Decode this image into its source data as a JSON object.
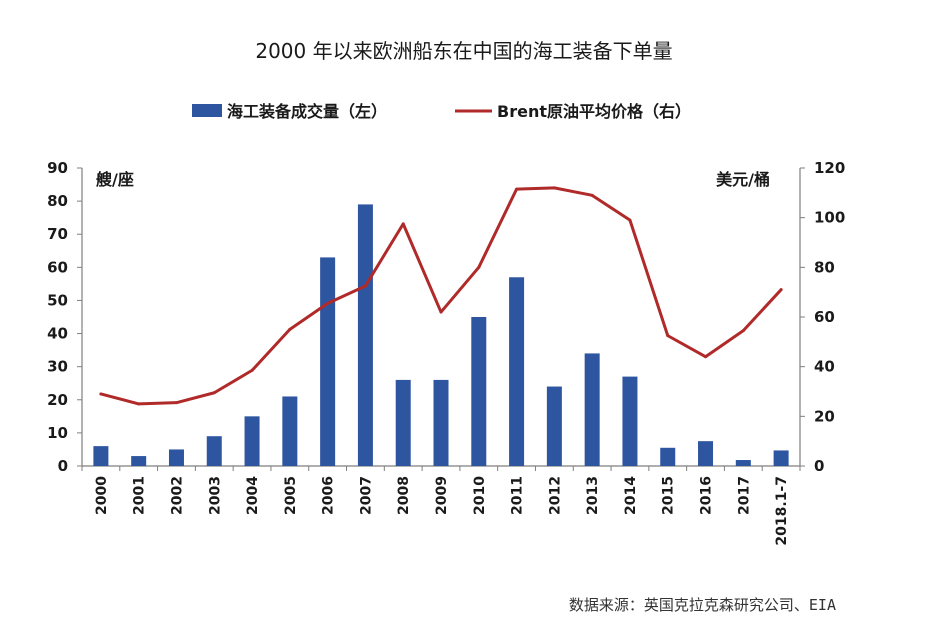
{
  "colors": {
    "bar": "#2e55a0",
    "line": "#b02a2a",
    "axis": "#7f7f7f",
    "text": "#1a1a1a"
  },
  "chart_data": {
    "type": "bar",
    "title": "2000 年以来欧洲船东在中国的海工装备下单量",
    "categories": [
      "2000",
      "2001",
      "2002",
      "2003",
      "2004",
      "2005",
      "2006",
      "2007",
      "2008",
      "2009",
      "2010",
      "2011",
      "2012",
      "2013",
      "2014",
      "2015",
      "2016",
      "2017",
      "2018.1-7"
    ],
    "series": [
      {
        "name": "海工装备成交量（左）",
        "type": "bar",
        "axis": "left",
        "values": [
          6,
          3,
          5,
          9,
          15,
          21,
          63,
          79,
          26,
          26,
          45,
          57,
          24,
          34,
          27,
          5.5,
          7.5,
          1.8,
          4.7
        ]
      },
      {
        "name": "Brent原油平均价格（右）",
        "type": "line",
        "axis": "right",
        "values": [
          29,
          25,
          25.5,
          29.5,
          38.5,
          55,
          65.5,
          72.5,
          97.5,
          62,
          80,
          111.5,
          112,
          109,
          99,
          52.5,
          44,
          54.5,
          71
        ]
      }
    ],
    "left_axis": {
      "unit": "艘/座",
      "ylim": [
        0,
        90
      ],
      "ticks": [
        0,
        10,
        20,
        30,
        40,
        50,
        60,
        70,
        80,
        90
      ]
    },
    "right_axis": {
      "unit": "美元/桶",
      "ylim": [
        0,
        120
      ],
      "ticks": [
        0,
        20,
        40,
        60,
        80,
        100,
        120
      ]
    },
    "legend_position": "top",
    "grid": false,
    "source": "数据来源：英国克拉克森研究公司、EIA"
  }
}
